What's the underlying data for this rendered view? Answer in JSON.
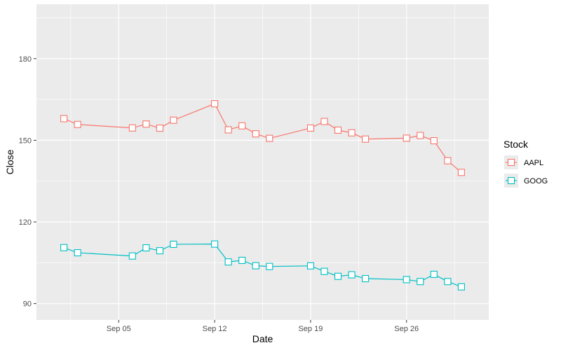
{
  "chart_data": {
    "type": "line",
    "title": "",
    "xlabel": "Date",
    "ylabel": "Close",
    "x_ticks": [
      "Sep 05",
      "Sep 12",
      "Sep 19",
      "Sep 26"
    ],
    "x_tick_dates": [
      "2022-09-05",
      "2022-09-12",
      "2022-09-19",
      "2022-09-26"
    ],
    "xlim": [
      "2022-08-30",
      "2022-10-02"
    ],
    "ylim": [
      84,
      200
    ],
    "y_ticks": [
      90,
      120,
      150,
      180
    ],
    "grid": true,
    "legend": {
      "title": "Stock",
      "position": "right"
    },
    "series": [
      {
        "name": "AAPL",
        "color": "#F8766D",
        "marker": "square-open",
        "points": [
          [
            "2022-09-01",
            157.96
          ],
          [
            "2022-09-02",
            155.81
          ],
          [
            "2022-09-06",
            154.53
          ],
          [
            "2022-09-07",
            155.96
          ],
          [
            "2022-09-08",
            154.46
          ],
          [
            "2022-09-09",
            157.37
          ],
          [
            "2022-09-12",
            163.43
          ],
          [
            "2022-09-13",
            153.84
          ],
          [
            "2022-09-14",
            155.31
          ],
          [
            "2022-09-15",
            152.37
          ],
          [
            "2022-09-16",
            150.7
          ],
          [
            "2022-09-19",
            154.48
          ],
          [
            "2022-09-20",
            156.9
          ],
          [
            "2022-09-21",
            153.72
          ],
          [
            "2022-09-22",
            152.74
          ],
          [
            "2022-09-23",
            150.43
          ],
          [
            "2022-09-26",
            150.77
          ],
          [
            "2022-09-27",
            151.76
          ],
          [
            "2022-09-28",
            149.84
          ],
          [
            "2022-09-29",
            142.48
          ],
          [
            "2022-09-30",
            138.2
          ]
        ]
      },
      {
        "name": "GOOG",
        "color": "#00BFC4",
        "marker": "square-open",
        "points": [
          [
            "2022-09-01",
            110.55
          ],
          [
            "2022-09-02",
            108.68
          ],
          [
            "2022-09-06",
            107.48
          ],
          [
            "2022-09-07",
            110.48
          ],
          [
            "2022-09-08",
            109.42
          ],
          [
            "2022-09-09",
            111.78
          ],
          [
            "2022-09-12",
            111.87
          ],
          [
            "2022-09-13",
            105.31
          ],
          [
            "2022-09-14",
            105.87
          ],
          [
            "2022-09-15",
            103.9
          ],
          [
            "2022-09-16",
            103.63
          ],
          [
            "2022-09-19",
            103.85
          ],
          [
            "2022-09-20",
            101.83
          ],
          [
            "2022-09-21",
            100.01
          ],
          [
            "2022-09-22",
            100.57
          ],
          [
            "2022-09-23",
            99.17
          ],
          [
            "2022-09-26",
            98.81
          ],
          [
            "2022-09-27",
            98.09
          ],
          [
            "2022-09-28",
            100.74
          ],
          [
            "2022-09-29",
            98.09
          ],
          [
            "2022-09-30",
            96.15
          ]
        ]
      }
    ]
  }
}
